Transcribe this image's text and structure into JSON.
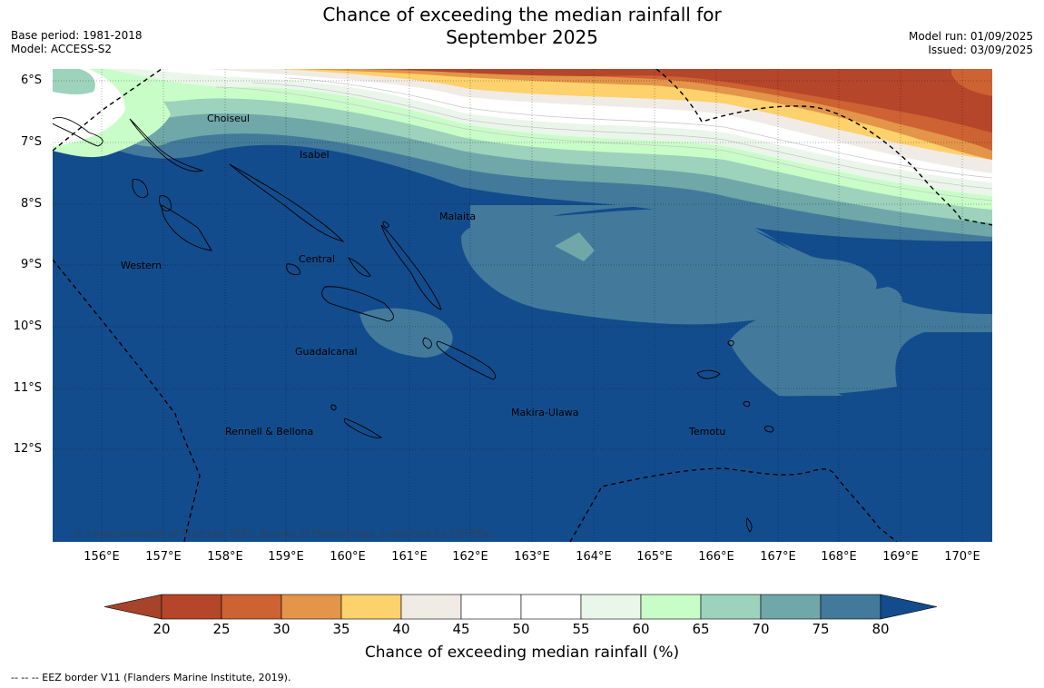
{
  "title_line1": "Chance of exceeding the median rainfall for",
  "title_line2": "September 2025",
  "base_period": "Base period: 1981-2018",
  "model": "Model: ACCESS-S2",
  "model_run": "Model run: 01/09/2025",
  "issued": "Issued: 03/09/2025",
  "copyright": "© Commonwealth of Australia 2025, Bureau of Meteorology, supported by COSPPac",
  "regions": [
    "Choiseul",
    "Isabel",
    "Malaita",
    "Western",
    "Central",
    "Guadalcanal",
    "Makira-Ulawa",
    "Rennell & Bellona",
    "Temotu"
  ],
  "lat_ticks": [
    "6°S",
    "7°S",
    "8°S",
    "9°S",
    "10°S",
    "11°S",
    "12°S"
  ],
  "lon_ticks": [
    "156°E",
    "157°E",
    "158°E",
    "159°E",
    "160°E",
    "161°E",
    "162°E",
    "163°E",
    "164°E",
    "165°E",
    "166°E",
    "167°E",
    "168°E",
    "169°E",
    "170°E"
  ],
  "legend": {
    "title": "Chance of exceeding median rainfall (%)",
    "ticks": [
      "20",
      "25",
      "30",
      "35",
      "40",
      "45",
      "50",
      "55",
      "60",
      "65",
      "70",
      "75",
      "80"
    ],
    "colors": [
      "#b5462a",
      "#cd6232",
      "#e39549",
      "#fdd16b",
      "#f1ebe6",
      "#ffffff",
      "#ffffff",
      "#eaf6ea",
      "#c8fdc8",
      "#9dd2bc",
      "#70a7a9",
      "#437a9c",
      "#134c8c"
    ],
    "low_color": "#a6432a",
    "high_color": "#134c8c"
  },
  "footnote": "-- -- -- EEZ border V11 (Flanders Marine Institute, 2019)."
}
